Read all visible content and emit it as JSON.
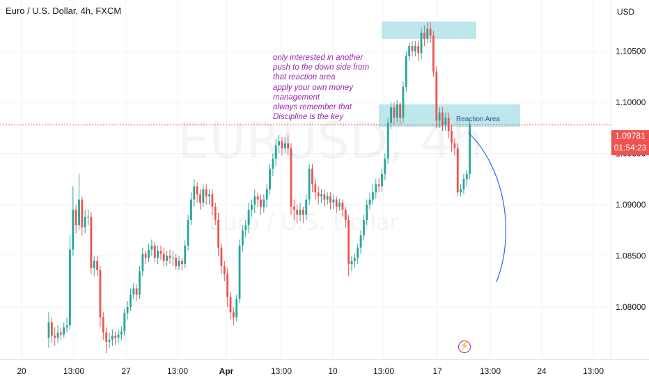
{
  "title": "Euro / U.S. Dollar, 4h, FXCM",
  "currency": "USD",
  "watermark": {
    "symbol": "EURUSD, 4h",
    "name": "Euro / U.S. Dollar"
  },
  "annotation_lines": [
    "only interested in another",
    "push to the down side from",
    "that reaction area",
    "apply your own money",
    "management",
    "always remember that",
    "Discipline is the key"
  ],
  "reaction_label": "Reaction Area",
  "current_price": "1.09781",
  "countdown": "01:54:23",
  "colors": {
    "up": "#26a69a",
    "down": "#ef5350",
    "zone": "#b2e3e8",
    "note": "#9c27b0",
    "curve": "#2962ff"
  },
  "icons": {
    "alert": "lightning-icon"
  },
  "chart_data": {
    "type": "candlestick",
    "symbol": "EURUSD",
    "timeframe": "4h",
    "ylim": [
      1.0755,
      1.1085
    ],
    "y_ticks": [
      "1.10500",
      "1.10000",
      "1.09500",
      "1.09000",
      "1.08500",
      "1.08000"
    ],
    "x_ticks": [
      "20",
      "13:00",
      "27",
      "13:00",
      "Apr",
      "13:00",
      "10",
      "13:00",
      "17",
      "13:00",
      "24",
      "13:00"
    ],
    "zones": [
      {
        "label": "",
        "y_range": [
          1.1062,
          1.1079
        ]
      },
      {
        "label": "Reaction Area",
        "y_range": [
          1.0976,
          1.0998
        ]
      }
    ],
    "candles": [
      [
        1.077,
        1.0785,
        1.076,
        1.0795
      ],
      [
        1.0785,
        1.0772,
        1.0765,
        1.079
      ],
      [
        1.0772,
        1.077,
        1.0762,
        1.078
      ],
      [
        1.077,
        1.0775,
        1.0765,
        1.0782
      ],
      [
        1.0775,
        1.0773,
        1.0768,
        1.078
      ],
      [
        1.0773,
        1.078,
        1.077,
        1.0785
      ],
      [
        1.078,
        1.0782,
        1.0775,
        1.079
      ],
      [
        1.0782,
        1.0856,
        1.0778,
        1.087
      ],
      [
        1.0856,
        1.0895,
        1.085,
        1.0918
      ],
      [
        1.0895,
        1.088,
        1.0872,
        1.09
      ],
      [
        1.088,
        1.0905,
        1.0875,
        1.093
      ],
      [
        1.0905,
        1.0878,
        1.087,
        1.0908
      ],
      [
        1.0878,
        1.0888,
        1.0872,
        1.0895
      ],
      [
        1.0888,
        1.0888,
        1.088,
        1.0895
      ],
      [
        1.0888,
        1.0838,
        1.0832,
        1.0893
      ],
      [
        1.0838,
        1.0845,
        1.083,
        1.085
      ],
      [
        1.0845,
        1.0836,
        1.083,
        1.085
      ],
      [
        1.0836,
        1.079,
        1.078,
        1.084
      ],
      [
        1.079,
        1.0775,
        1.0768,
        1.0795
      ],
      [
        1.0775,
        1.0766,
        1.0755,
        1.078
      ],
      [
        1.0766,
        1.0768,
        1.076,
        1.0775
      ],
      [
        1.0768,
        1.0772,
        1.0762,
        1.0778
      ],
      [
        1.0772,
        1.077,
        1.0763,
        1.0776
      ],
      [
        1.077,
        1.0773,
        1.0765,
        1.0778
      ],
      [
        1.0773,
        1.0776,
        1.0768,
        1.0781
      ],
      [
        1.0776,
        1.0794,
        1.0772,
        1.0798
      ],
      [
        1.0794,
        1.08,
        1.0788,
        1.0806
      ],
      [
        1.08,
        1.0812,
        1.0796,
        1.0818
      ],
      [
        1.0812,
        1.0818,
        1.0808,
        1.0823
      ],
      [
        1.0818,
        1.0812,
        1.0806,
        1.0822
      ],
      [
        1.0812,
        1.0835,
        1.0808,
        1.084
      ],
      [
        1.0835,
        1.0852,
        1.083,
        1.0858
      ],
      [
        1.0852,
        1.0848,
        1.0842,
        1.0855
      ],
      [
        1.0848,
        1.0856,
        1.0844,
        1.0862
      ],
      [
        1.0856,
        1.086,
        1.085,
        1.0866
      ],
      [
        1.086,
        1.0848,
        1.0844,
        1.0864
      ],
      [
        1.0848,
        1.0855,
        1.0842,
        1.086
      ],
      [
        1.0855,
        1.0852,
        1.0846,
        1.086
      ],
      [
        1.0852,
        1.0845,
        1.084,
        1.0858
      ],
      [
        1.0845,
        1.085,
        1.084,
        1.0855
      ],
      [
        1.085,
        1.0848,
        1.0842,
        1.0856
      ],
      [
        1.0848,
        1.0848,
        1.084,
        1.0855
      ],
      [
        1.0848,
        1.084,
        1.0836,
        1.0852
      ],
      [
        1.084,
        1.0845,
        1.0836,
        1.085
      ],
      [
        1.0845,
        1.0842,
        1.0836,
        1.0848
      ],
      [
        1.0842,
        1.086,
        1.0838,
        1.0865
      ],
      [
        1.086,
        1.0885,
        1.0855,
        1.089
      ],
      [
        1.0885,
        1.0905,
        1.088,
        1.0912
      ],
      [
        1.0905,
        1.0918,
        1.0898,
        1.0925
      ],
      [
        1.0918,
        1.091,
        1.0902,
        1.0922
      ],
      [
        1.091,
        1.0902,
        1.0895,
        1.0915
      ],
      [
        1.0902,
        1.0915,
        1.0898,
        1.092
      ],
      [
        1.0915,
        1.0908,
        1.09,
        1.092
      ],
      [
        1.0908,
        1.091,
        1.09,
        1.0915
      ],
      [
        1.091,
        1.0898,
        1.089,
        1.0915
      ],
      [
        1.0898,
        1.0885,
        1.088,
        1.0902
      ],
      [
        1.0885,
        1.0858,
        1.085,
        1.0892
      ],
      [
        1.0858,
        1.084,
        1.0832,
        1.0862
      ],
      [
        1.084,
        1.0832,
        1.0825,
        1.0845
      ],
      [
        1.0832,
        1.081,
        1.08,
        1.0838
      ],
      [
        1.081,
        1.0795,
        1.0788,
        1.0815
      ],
      [
        1.0795,
        1.079,
        1.0782,
        1.08
      ],
      [
        1.079,
        1.0808,
        1.0786,
        1.0812
      ],
      [
        1.0808,
        1.086,
        1.0804,
        1.0866
      ],
      [
        1.086,
        1.0875,
        1.0854,
        1.088
      ],
      [
        1.0875,
        1.088,
        1.0868,
        1.0885
      ],
      [
        1.088,
        1.0895,
        1.0872,
        1.0902
      ],
      [
        1.0895,
        1.09,
        1.0888,
        1.0905
      ],
      [
        1.09,
        1.0908,
        1.0892,
        1.0915
      ],
      [
        1.0908,
        1.0905,
        1.0898,
        1.0912
      ],
      [
        1.0905,
        1.0898,
        1.089,
        1.091
      ],
      [
        1.0898,
        1.0905,
        1.0892,
        1.091
      ],
      [
        1.0905,
        1.0915,
        1.0898,
        1.092
      ],
      [
        1.0915,
        1.0935,
        1.091,
        1.094
      ],
      [
        1.0935,
        1.0945,
        1.0928,
        1.095
      ],
      [
        1.0945,
        1.0958,
        1.0938,
        1.0964
      ],
      [
        1.0958,
        1.0962,
        1.095,
        1.0968
      ],
      [
        1.0962,
        1.0955,
        1.0948,
        1.0966
      ],
      [
        1.0955,
        1.096,
        1.095,
        1.0966
      ],
      [
        1.096,
        1.0955,
        1.0948,
        1.0968
      ],
      [
        1.0955,
        1.0898,
        1.089,
        1.096
      ],
      [
        1.0898,
        1.0895,
        1.0885,
        1.0905
      ],
      [
        1.0895,
        1.089,
        1.0882,
        1.09
      ],
      [
        1.089,
        1.0895,
        1.0884,
        1.0902
      ],
      [
        1.0895,
        1.089,
        1.0882,
        1.0898
      ],
      [
        1.089,
        1.0905,
        1.0885,
        1.091
      ],
      [
        1.0905,
        1.0935,
        1.09,
        1.094
      ],
      [
        1.0935,
        1.092,
        1.0912,
        1.094
      ],
      [
        1.092,
        1.0912,
        1.0905,
        1.0925
      ],
      [
        1.0912,
        1.0908,
        1.09,
        1.0918
      ],
      [
        1.0908,
        1.091,
        1.0902,
        1.0915
      ],
      [
        1.091,
        1.0905,
        1.0898,
        1.0915
      ],
      [
        1.0905,
        1.0908,
        1.09,
        1.0912
      ],
      [
        1.0908,
        1.0902,
        1.0895,
        1.0912
      ],
      [
        1.0902,
        1.0905,
        1.0896,
        1.091
      ],
      [
        1.0905,
        1.0898,
        1.0892,
        1.0908
      ],
      [
        1.0898,
        1.0902,
        1.0894,
        1.0906
      ],
      [
        1.0902,
        1.0895,
        1.0888,
        1.0905
      ],
      [
        1.0895,
        1.0885,
        1.0878,
        1.0898
      ],
      [
        1.0885,
        1.0842,
        1.083,
        1.089
      ],
      [
        1.0842,
        1.0845,
        1.0835,
        1.085
      ],
      [
        1.0845,
        1.0848,
        1.0838,
        1.0852
      ],
      [
        1.0848,
        1.0858,
        1.0842,
        1.0862
      ],
      [
        1.0858,
        1.087,
        1.0852,
        1.0875
      ],
      [
        1.087,
        1.0885,
        1.0865,
        1.089
      ],
      [
        1.0885,
        1.09,
        1.088,
        1.0905
      ],
      [
        1.09,
        1.0905,
        1.0895,
        1.0912
      ],
      [
        1.0905,
        1.0912,
        1.09,
        1.092
      ],
      [
        1.0912,
        1.092,
        1.0906,
        1.0925
      ],
      [
        1.092,
        1.0918,
        1.0912,
        1.0926
      ],
      [
        1.0918,
        1.093,
        1.0912,
        1.0935
      ],
      [
        1.093,
        1.0945,
        1.0924,
        1.095
      ],
      [
        1.0945,
        1.098,
        1.094,
        1.0985
      ],
      [
        1.098,
        1.0995,
        1.0974,
        1.1
      ],
      [
        1.0995,
        1.0985,
        1.0978,
        1.1
      ],
      [
        1.0985,
        1.0998,
        1.098,
        1.1002
      ],
      [
        1.0998,
        1.0985,
        1.0978,
        1.1
      ],
      [
        1.0985,
        1.1015,
        1.098,
        1.102
      ],
      [
        1.1015,
        1.1045,
        1.101,
        1.105
      ],
      [
        1.1045,
        1.1055,
        1.104,
        1.1058
      ],
      [
        1.1055,
        1.105,
        1.1045,
        1.106
      ],
      [
        1.105,
        1.1055,
        1.1045,
        1.106
      ],
      [
        1.1055,
        1.1048,
        1.104,
        1.106
      ],
      [
        1.1048,
        1.1068,
        1.1042,
        1.1072
      ],
      [
        1.1068,
        1.1062,
        1.1055,
        1.1075
      ],
      [
        1.1062,
        1.1072,
        1.1058,
        1.1078
      ],
      [
        1.1072,
        1.1065,
        1.1058,
        1.1078
      ],
      [
        1.1065,
        1.103,
        1.1025,
        1.107
      ],
      [
        1.103,
        1.0982,
        1.0975,
        1.1035
      ],
      [
        1.0982,
        1.099,
        1.0975,
        1.0995
      ],
      [
        1.099,
        1.0978,
        1.0972,
        1.0995
      ],
      [
        1.0978,
        1.0985,
        1.0972,
        1.099
      ],
      [
        1.0985,
        1.0972,
        1.0965,
        1.099
      ],
      [
        1.0972,
        1.096,
        1.0952,
        1.0978
      ],
      [
        1.096,
        1.0955,
        1.0948,
        1.0965
      ],
      [
        1.0955,
        1.0912,
        1.0908,
        1.096
      ],
      [
        1.0912,
        1.0915,
        1.0908,
        1.092
      ],
      [
        1.0915,
        1.0925,
        1.091,
        1.093
      ],
      [
        1.0925,
        1.093,
        1.0918,
        1.0934
      ],
      [
        1.093,
        1.0978,
        1.0925,
        1.0982
      ]
    ]
  }
}
